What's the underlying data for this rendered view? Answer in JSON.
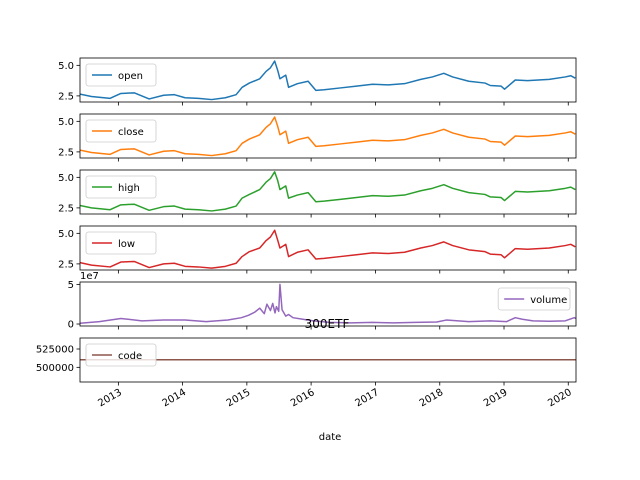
{
  "chart_data": {
    "type": "line",
    "title": "300ETF",
    "xlabel": "date",
    "x_tick_labels": [
      "2013",
      "2014",
      "2015",
      "2016",
      "2017",
      "2018",
      "2019",
      "2020"
    ],
    "x_tick_years": [
      2013,
      2014,
      2015,
      2016,
      2017,
      2018,
      2019,
      2020
    ],
    "xlim": [
      "2012-05-28",
      "2020-02-14"
    ],
    "legend_placement": "upper left",
    "grid": false,
    "subplots": [
      {
        "name": "open",
        "color": "#1f77b4",
        "legend": "open",
        "legend_placement": "upper left",
        "ylim": [
          2.0,
          5.6
        ],
        "yticks": [
          2.5,
          5.0
        ],
        "ytick_labels": [
          "2.5",
          "5.0"
        ],
        "dates": [
          "2012-05-28",
          "2012-08-01",
          "2012-11-15",
          "2013-01-15",
          "2013-04-01",
          "2013-06-25",
          "2013-09-15",
          "2013-11-15",
          "2014-01-15",
          "2014-04-01",
          "2014-06-15",
          "2014-09-01",
          "2014-11-01",
          "2014-12-05",
          "2015-01-15",
          "2015-03-15",
          "2015-04-20",
          "2015-05-15",
          "2015-06-08",
          "2015-06-25",
          "2015-07-08",
          "2015-08-10",
          "2015-08-26",
          "2015-10-15",
          "2015-12-15",
          "2016-01-28",
          "2016-03-15",
          "2016-06-15",
          "2016-09-15",
          "2016-12-15",
          "2017-03-15",
          "2017-06-15",
          "2017-09-15",
          "2017-11-20",
          "2018-01-24",
          "2018-03-15",
          "2018-06-15",
          "2018-09-15",
          "2018-10-15",
          "2018-12-15",
          "2019-01-04",
          "2019-03-06",
          "2019-05-15",
          "2019-07-15",
          "2019-09-15",
          "2019-12-15",
          "2020-01-15",
          "2020-02-10"
        ],
        "values": [
          2.65,
          2.45,
          2.3,
          2.7,
          2.75,
          2.25,
          2.55,
          2.6,
          2.35,
          2.3,
          2.2,
          2.35,
          2.6,
          3.2,
          3.55,
          3.9,
          4.5,
          4.8,
          5.35,
          4.6,
          3.9,
          4.2,
          3.2,
          3.5,
          3.7,
          2.95,
          3.0,
          3.15,
          3.3,
          3.45,
          3.4,
          3.5,
          3.85,
          4.05,
          4.35,
          4.05,
          3.7,
          3.55,
          3.35,
          3.3,
          3.05,
          3.8,
          3.75,
          3.8,
          3.85,
          4.05,
          4.15,
          3.95
        ]
      },
      {
        "name": "close",
        "color": "#ff7f0e",
        "legend": "close",
        "legend_placement": "upper left",
        "ylim": [
          2.0,
          5.6
        ],
        "yticks": [
          2.5,
          5.0
        ],
        "ytick_labels": [
          "2.5",
          "5.0"
        ],
        "dates": [
          "2012-05-28",
          "2012-08-01",
          "2012-11-15",
          "2013-01-15",
          "2013-04-01",
          "2013-06-25",
          "2013-09-15",
          "2013-11-15",
          "2014-01-15",
          "2014-04-01",
          "2014-06-15",
          "2014-09-01",
          "2014-11-01",
          "2014-12-05",
          "2015-01-15",
          "2015-03-15",
          "2015-04-20",
          "2015-05-15",
          "2015-06-08",
          "2015-06-25",
          "2015-07-08",
          "2015-08-10",
          "2015-08-26",
          "2015-10-15",
          "2015-12-15",
          "2016-01-28",
          "2016-03-15",
          "2016-06-15",
          "2016-09-15",
          "2016-12-15",
          "2017-03-15",
          "2017-06-15",
          "2017-09-15",
          "2017-11-20",
          "2018-01-24",
          "2018-03-15",
          "2018-06-15",
          "2018-09-15",
          "2018-10-15",
          "2018-12-15",
          "2019-01-04",
          "2019-03-06",
          "2019-05-15",
          "2019-07-15",
          "2019-09-15",
          "2019-12-15",
          "2020-01-15",
          "2020-02-10"
        ],
        "values": [
          2.65,
          2.45,
          2.3,
          2.7,
          2.75,
          2.25,
          2.55,
          2.6,
          2.35,
          2.3,
          2.2,
          2.35,
          2.6,
          3.2,
          3.55,
          3.9,
          4.5,
          4.8,
          5.35,
          4.6,
          3.9,
          4.2,
          3.2,
          3.5,
          3.7,
          2.95,
          3.0,
          3.15,
          3.3,
          3.45,
          3.4,
          3.5,
          3.85,
          4.05,
          4.35,
          4.05,
          3.7,
          3.55,
          3.35,
          3.3,
          3.05,
          3.8,
          3.75,
          3.8,
          3.85,
          4.05,
          4.15,
          3.95
        ]
      },
      {
        "name": "high",
        "color": "#2ca02c",
        "legend": "high",
        "legend_placement": "upper left",
        "ylim": [
          2.0,
          5.6
        ],
        "yticks": [
          2.5,
          5.0
        ],
        "ytick_labels": [
          "2.5",
          "5.0"
        ],
        "dates": [
          "2012-05-28",
          "2012-08-01",
          "2012-11-15",
          "2013-01-15",
          "2013-04-01",
          "2013-06-25",
          "2013-09-15",
          "2013-11-15",
          "2014-01-15",
          "2014-04-01",
          "2014-06-15",
          "2014-09-01",
          "2014-11-01",
          "2014-12-05",
          "2015-01-15",
          "2015-03-15",
          "2015-04-20",
          "2015-05-15",
          "2015-06-08",
          "2015-06-25",
          "2015-07-08",
          "2015-08-10",
          "2015-08-26",
          "2015-10-15",
          "2015-12-15",
          "2016-01-28",
          "2016-03-15",
          "2016-06-15",
          "2016-09-15",
          "2016-12-15",
          "2017-03-15",
          "2017-06-15",
          "2017-09-15",
          "2017-11-20",
          "2018-01-24",
          "2018-03-15",
          "2018-06-15",
          "2018-09-15",
          "2018-10-15",
          "2018-12-15",
          "2019-01-04",
          "2019-03-06",
          "2019-05-15",
          "2019-07-15",
          "2019-09-15",
          "2019-12-15",
          "2020-01-15",
          "2020-02-10"
        ],
        "values": [
          2.7,
          2.5,
          2.35,
          2.75,
          2.8,
          2.3,
          2.6,
          2.65,
          2.4,
          2.35,
          2.25,
          2.4,
          2.65,
          3.3,
          3.6,
          4.0,
          4.6,
          4.9,
          5.45,
          4.75,
          4.0,
          4.3,
          3.3,
          3.55,
          3.75,
          3.0,
          3.05,
          3.2,
          3.35,
          3.5,
          3.45,
          3.55,
          3.9,
          4.1,
          4.4,
          4.1,
          3.75,
          3.6,
          3.4,
          3.35,
          3.1,
          3.85,
          3.8,
          3.85,
          3.9,
          4.1,
          4.2,
          4.0
        ]
      },
      {
        "name": "low",
        "color": "#d62728",
        "legend": "low",
        "legend_placement": "upper left",
        "ylim": [
          2.0,
          5.6
        ],
        "yticks": [
          2.5,
          5.0
        ],
        "ytick_labels": [
          "2.5",
          "5.0"
        ],
        "dates": [
          "2012-05-28",
          "2012-08-01",
          "2012-11-15",
          "2013-01-15",
          "2013-04-01",
          "2013-06-25",
          "2013-09-15",
          "2013-11-15",
          "2014-01-15",
          "2014-04-01",
          "2014-06-15",
          "2014-09-01",
          "2014-11-01",
          "2014-12-05",
          "2015-01-15",
          "2015-03-15",
          "2015-04-20",
          "2015-05-15",
          "2015-06-08",
          "2015-06-25",
          "2015-07-08",
          "2015-08-10",
          "2015-08-26",
          "2015-10-15",
          "2015-12-15",
          "2016-01-28",
          "2016-03-15",
          "2016-06-15",
          "2016-09-15",
          "2016-12-15",
          "2017-03-15",
          "2017-06-15",
          "2017-09-15",
          "2017-11-20",
          "2018-01-24",
          "2018-03-15",
          "2018-06-15",
          "2018-09-15",
          "2018-10-15",
          "2018-12-15",
          "2019-01-04",
          "2019-03-06",
          "2019-05-15",
          "2019-07-15",
          "2019-09-15",
          "2019-12-15",
          "2020-01-15",
          "2020-02-10"
        ],
        "values": [
          2.6,
          2.4,
          2.25,
          2.65,
          2.7,
          2.2,
          2.5,
          2.55,
          2.3,
          2.25,
          2.15,
          2.3,
          2.55,
          3.1,
          3.5,
          3.8,
          4.4,
          4.7,
          5.25,
          4.45,
          3.8,
          4.1,
          3.1,
          3.45,
          3.65,
          2.9,
          2.95,
          3.1,
          3.25,
          3.4,
          3.35,
          3.45,
          3.8,
          4.0,
          4.3,
          4.0,
          3.65,
          3.5,
          3.3,
          3.25,
          3.0,
          3.75,
          3.7,
          3.75,
          3.8,
          4.0,
          4.1,
          3.9
        ]
      },
      {
        "name": "volume",
        "color": "#9467bd",
        "legend": "volume",
        "legend_placement": "center right",
        "ylim": [
          -0.25,
          5.3
        ],
        "yticks": [
          0,
          5
        ],
        "ytick_labels": [
          "0",
          "5"
        ],
        "offset_text": "1e7",
        "dates": [
          "2012-05-28",
          "2012-09-15",
          "2013-01-15",
          "2013-05-15",
          "2013-09-15",
          "2014-01-15",
          "2014-05-15",
          "2014-09-15",
          "2014-12-01",
          "2015-01-10",
          "2015-02-15",
          "2015-03-15",
          "2015-04-10",
          "2015-04-25",
          "2015-05-15",
          "2015-05-28",
          "2015-06-10",
          "2015-06-18",
          "2015-07-01",
          "2015-07-08",
          "2015-07-20",
          "2015-08-10",
          "2015-08-26",
          "2015-09-20",
          "2015-11-15",
          "2016-01-15",
          "2016-04-15",
          "2016-08-15",
          "2016-12-15",
          "2017-04-15",
          "2017-08-15",
          "2017-12-15",
          "2018-02-07",
          "2018-06-15",
          "2018-10-15",
          "2019-01-15",
          "2019-03-06",
          "2019-04-15",
          "2019-06-15",
          "2019-09-15",
          "2019-12-15",
          "2020-02-04",
          "2020-02-14"
        ],
        "values": [
          0.1,
          0.3,
          0.7,
          0.4,
          0.5,
          0.5,
          0.3,
          0.5,
          0.8,
          1.1,
          1.5,
          2.0,
          1.3,
          2.5,
          1.7,
          2.6,
          1.4,
          2.2,
          1.6,
          5.0,
          1.8,
          1.0,
          1.2,
          0.8,
          0.6,
          0.4,
          0.2,
          0.15,
          0.2,
          0.15,
          0.2,
          0.25,
          0.5,
          0.3,
          0.4,
          0.3,
          0.8,
          0.6,
          0.4,
          0.35,
          0.4,
          0.8,
          0.7
        ]
      },
      {
        "name": "code",
        "color": "#8c564b",
        "legend": "code",
        "legend_placement": "upper left",
        "ylim": [
          480000,
          540000
        ],
        "yticks": [
          500000,
          525000
        ],
        "ytick_labels": [
          "500000",
          "525000"
        ],
        "dates": [
          "2012-05-28",
          "2020-02-14"
        ],
        "values": [
          510300,
          510300
        ]
      }
    ]
  }
}
